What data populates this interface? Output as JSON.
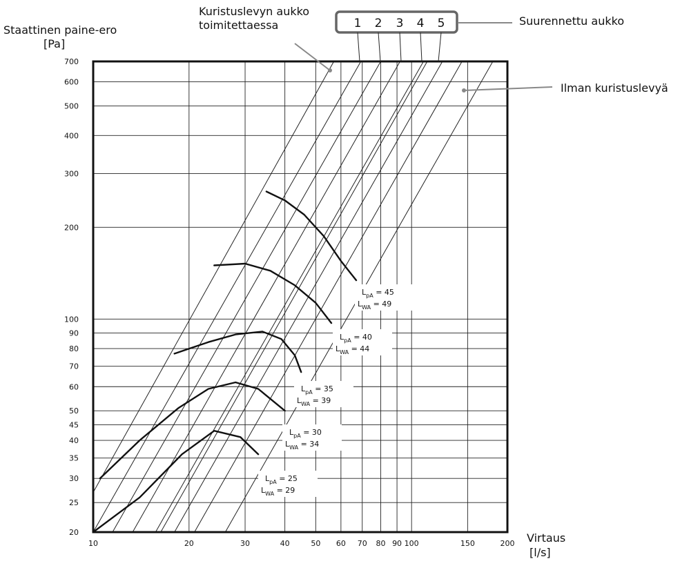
{
  "texts": {
    "ylabel_line1": "Staattinen paine-ero",
    "ylabel_line2": "[Pa]",
    "xlabel_line1": "Virtaus",
    "xlabel_line2": "[l/s]",
    "orifice_label_line1": "Kuristuslevyn aukko",
    "orifice_label_line2": "toimitettaessa",
    "enlarged_label": "Suurennettu aukko",
    "no_plate_label": "Ilman kuristuslevyä"
  },
  "colors": {
    "grid": "#222222",
    "frame": "#111111",
    "box_border": "#666666",
    "leader": "#888888",
    "curve": "#111111"
  },
  "chart_data": {
    "type": "line",
    "xscale": "log",
    "yscale": "log",
    "xlim": [
      10,
      200
    ],
    "ylim": [
      20,
      700
    ],
    "x_ticks": [
      10,
      20,
      30,
      40,
      50,
      60,
      70,
      80,
      90,
      100,
      150,
      200
    ],
    "y_ticks": [
      20,
      25,
      30,
      35,
      40,
      45,
      50,
      60,
      70,
      80,
      90,
      100,
      200,
      300,
      400,
      500,
      600,
      700
    ],
    "grid": true,
    "xlabel": "Virtaus [l/s]",
    "ylabel": "Staattinen paine-ero [Pa]",
    "orifice_positions": [
      "1",
      "2",
      "3",
      "4",
      "5"
    ],
    "characteristic_lines": [
      {
        "name": "Kuristuslevyn aukko toimitettaessa",
        "points": [
          [
            10,
            27
          ],
          [
            57,
            700
          ]
        ]
      },
      {
        "name": "1",
        "points": [
          [
            10,
            20
          ],
          [
            69.3,
            700
          ]
        ]
      },
      {
        "name": "2",
        "points": [
          [
            11.5,
            20
          ],
          [
            80,
            700
          ]
        ]
      },
      {
        "name": "3",
        "points": [
          [
            13.3,
            20
          ],
          [
            92,
            700
          ]
        ]
      },
      {
        "name": "4",
        "points": [
          [
            15.7,
            20
          ],
          [
            109,
            700
          ]
        ]
      },
      {
        "name": "5",
        "points": [
          [
            18,
            20
          ],
          [
            125,
            700
          ]
        ]
      },
      {
        "name": "Ilman kuristuslevyä",
        "points": [
          [
            26,
            20
          ],
          [
            180,
            700
          ]
        ]
      }
    ],
    "extra_lines": [
      {
        "points": [
          [
            16.3,
            20
          ],
          [
            112,
            700
          ]
        ]
      },
      {
        "points": [
          [
            20.8,
            20
          ],
          [
            144,
            700
          ]
        ]
      }
    ],
    "sound_curves": [
      {
        "lpa": "LpA = 25",
        "lwa": "LWA = 29",
        "points": [
          [
            10,
            20
          ],
          [
            14,
            26
          ],
          [
            19,
            36
          ],
          [
            24,
            43
          ],
          [
            29,
            41
          ],
          [
            33,
            36
          ]
        ]
      },
      {
        "lpa": "LpA = 30",
        "lwa": "LWA = 34",
        "points": [
          [
            10.5,
            30
          ],
          [
            14,
            40
          ],
          [
            18.5,
            51
          ],
          [
            23,
            59
          ],
          [
            28,
            62
          ],
          [
            33,
            59
          ],
          [
            40,
            50
          ]
        ]
      },
      {
        "lpa": "LpA = 35",
        "lwa": "LWA = 39",
        "points": [
          [
            18,
            77
          ],
          [
            23,
            84
          ],
          [
            28,
            89
          ],
          [
            34,
            91
          ],
          [
            39,
            86
          ],
          [
            43,
            76
          ],
          [
            45,
            67
          ]
        ]
      },
      {
        "lpa": "LpA = 40",
        "lwa": "LWA = 44",
        "points": [
          [
            24,
            150
          ],
          [
            30,
            152
          ],
          [
            36,
            144
          ],
          [
            43,
            129
          ],
          [
            50,
            113
          ],
          [
            56,
            97
          ]
        ]
      },
      {
        "lpa": "LpA = 45",
        "lwa": "LWA = 49",
        "points": [
          [
            35,
            262
          ],
          [
            40,
            245
          ],
          [
            46,
            220
          ],
          [
            53,
            187
          ],
          [
            60,
            155
          ],
          [
            67,
            134
          ]
        ]
      }
    ],
    "annotations": [
      {
        "lpa_main": "L",
        "lpa_sub": "pA",
        "lpa_val": " = 45",
        "lwa_main": "L",
        "lwa_sub": "WA",
        "lwa_val": " = 49"
      },
      {
        "lpa_main": "L",
        "lpa_sub": "pA",
        "lpa_val": " = 40",
        "lwa_main": "L",
        "lwa_sub": "WA",
        "lwa_val": " = 44"
      },
      {
        "lpa_main": "L",
        "lpa_sub": "pA",
        "lpa_val": " = 35",
        "lwa_main": "L",
        "lwa_sub": "WA",
        "lwa_val": " = 39"
      },
      {
        "lpa_main": "L",
        "lpa_sub": "pA",
        "lpa_val": " = 30",
        "lwa_main": "L",
        "lwa_sub": "WA",
        "lwa_val": " = 34"
      },
      {
        "lpa_main": "L",
        "lpa_sub": "pA",
        "lpa_val": " = 25",
        "lwa_main": "L",
        "lwa_sub": "WA",
        "lwa_val": " = 29"
      }
    ]
  }
}
